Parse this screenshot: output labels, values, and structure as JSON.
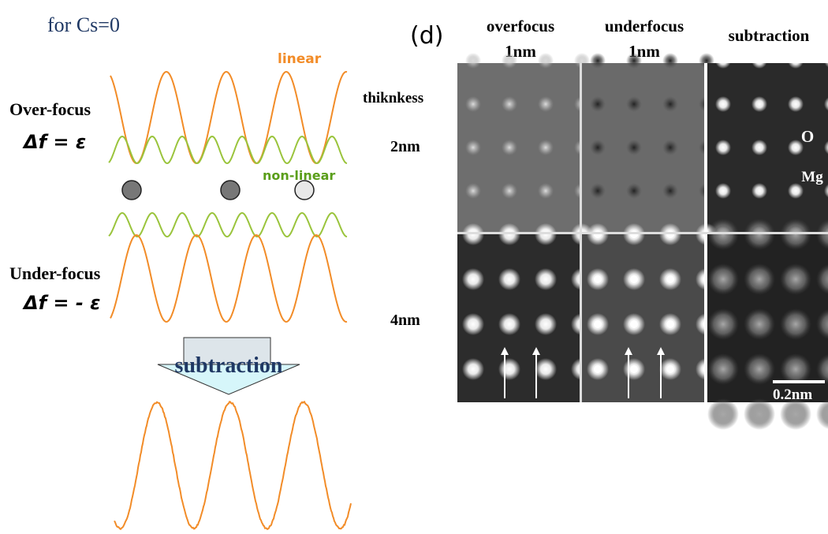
{
  "left": {
    "heading": "for  Cs=0",
    "linear_label": "linear",
    "nonlinear_label": "non-linear",
    "over_focus": {
      "label": "Over-focus",
      "formula": "Δf = ε"
    },
    "under_focus": {
      "label": "Under-focus",
      "formula": "Δf = - ε"
    },
    "arrow_label": "subtraction"
  },
  "right": {
    "panel_label": "(d)",
    "columns": [
      {
        "line1": "overfocus",
        "line2": "1nm"
      },
      {
        "line1": "underfocus",
        "line2": "1nm"
      },
      {
        "line1": "subtraction"
      }
    ],
    "row_header": "thiknkess",
    "rows": [
      "2nm",
      "4nm"
    ],
    "annotations": {
      "oxygen": "O",
      "magnesium": "Mg"
    },
    "scale_bar": "0.2nm"
  }
}
